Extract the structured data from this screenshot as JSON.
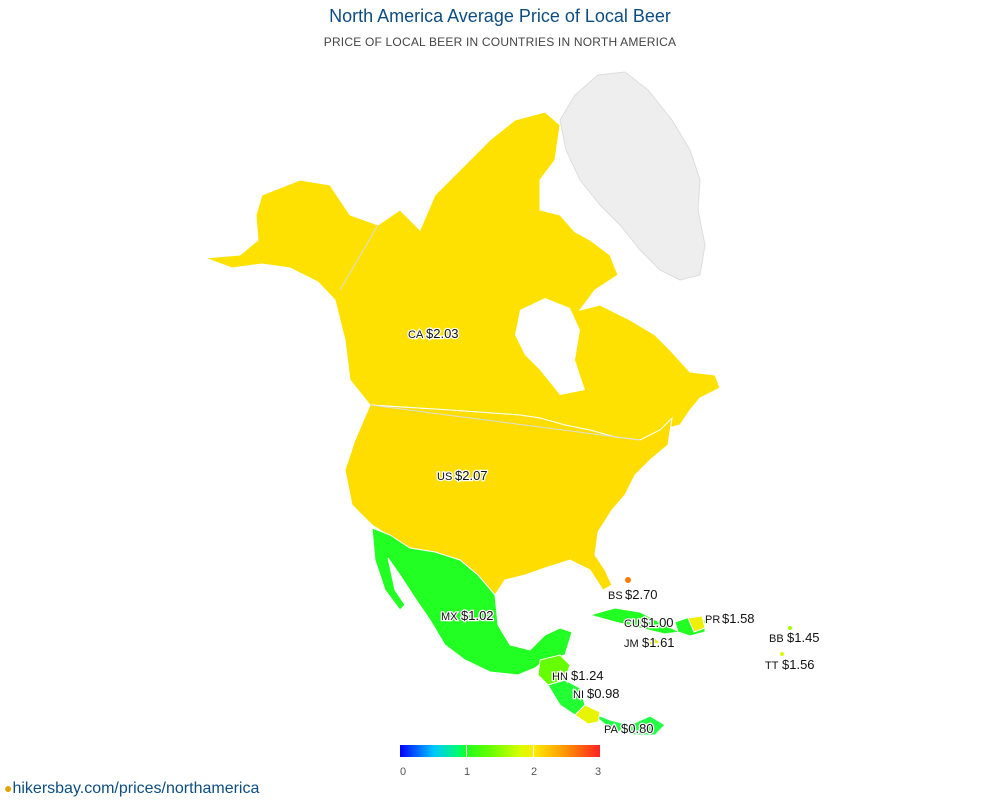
{
  "header": {
    "title": "North America Average Price of Local Beer",
    "subtitle": "PRICE OF LOCAL BEER IN COUNTRIES IN NORTH AMERICA"
  },
  "map": {
    "no_data_color": "#eeeeee",
    "regions": [
      {
        "code": "CA",
        "value_label": "$2.03",
        "value": 2.03,
        "color": "#ffe100"
      },
      {
        "code": "US",
        "value_label": "$2.07",
        "value": 2.07,
        "color": "#ffdd00"
      },
      {
        "code": "MX",
        "value_label": "$1.02",
        "value": 1.02,
        "color": "#22ff22"
      },
      {
        "code": "BS",
        "value_label": "$2.70",
        "value": 2.7,
        "color": "#ff7a00"
      },
      {
        "code": "CU",
        "value_label": "$1.00",
        "value": 1.0,
        "color": "#22ff22"
      },
      {
        "code": "PR",
        "value_label": "$1.58",
        "value": 1.58,
        "color": "#eef000"
      },
      {
        "code": "JM",
        "value_label": "$1.61",
        "value": 1.61,
        "color": "#f0f000"
      },
      {
        "code": "BB",
        "value_label": "$1.45",
        "value": 1.45,
        "color": "#a8ff00"
      },
      {
        "code": "TT",
        "value_label": "$1.56",
        "value": 1.56,
        "color": "#d8ff00"
      },
      {
        "code": "HN",
        "value_label": "$1.24",
        "value": 1.24,
        "color": "#66ff00"
      },
      {
        "code": "NI",
        "value_label": "$0.98",
        "value": 0.98,
        "color": "#22ff33"
      },
      {
        "code": "PA",
        "value_label": "$0.80",
        "value": 0.8,
        "color": "#22ff44"
      }
    ]
  },
  "legend": {
    "ticks": [
      "0",
      "1",
      "2",
      "3"
    ],
    "min": 0,
    "max": 3
  },
  "footer": {
    "source": "hikersbay.com/prices/northamerica"
  }
}
